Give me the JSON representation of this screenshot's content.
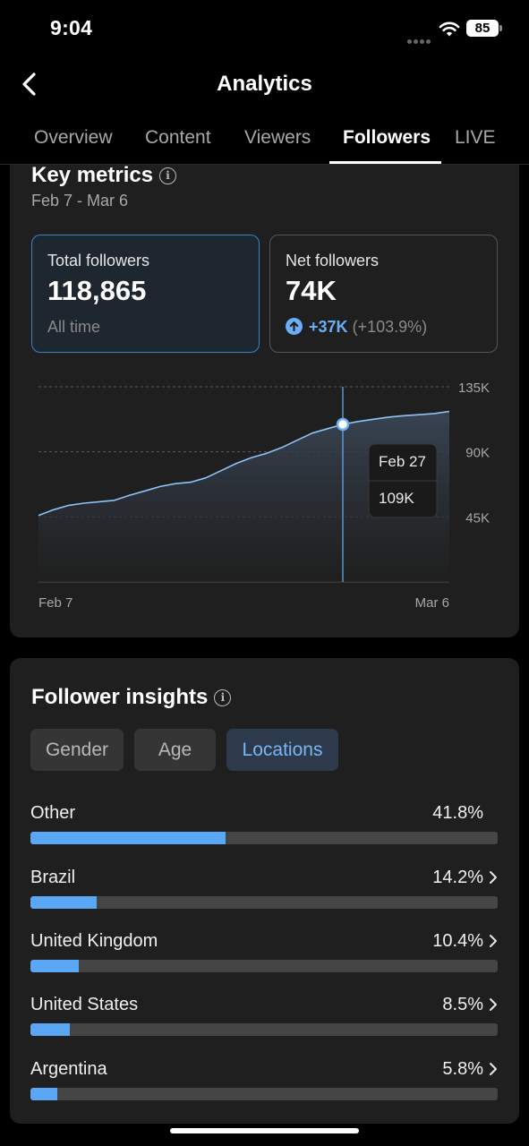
{
  "status_bar": {
    "time": "9:04",
    "battery": "85"
  },
  "header": {
    "title": "Analytics"
  },
  "tabs": [
    {
      "label": "Overview"
    },
    {
      "label": "Content"
    },
    {
      "label": "Viewers"
    },
    {
      "label": "Followers",
      "active": true
    },
    {
      "label": "LIVE"
    }
  ],
  "key_metrics": {
    "title": "Key metrics",
    "date_range": "Feb 7 - Mar 6",
    "total": {
      "label": "Total followers",
      "value": "118,865",
      "sub": "All time"
    },
    "net": {
      "label": "Net followers",
      "value": "74K",
      "change": "+37K",
      "change_pct": "(+103.9%)"
    }
  },
  "chart_data": {
    "type": "area",
    "x_start_label": "Feb 7",
    "x_end_label": "Mar 6",
    "y_ticks": [
      "45K",
      "90K",
      "135K"
    ],
    "ylim": [
      0,
      135000
    ],
    "x": [
      "Feb 7",
      "Feb 8",
      "Feb 9",
      "Feb 10",
      "Feb 11",
      "Feb 12",
      "Feb 13",
      "Feb 14",
      "Feb 15",
      "Feb 16",
      "Feb 17",
      "Feb 18",
      "Feb 19",
      "Feb 20",
      "Feb 21",
      "Feb 22",
      "Feb 23",
      "Feb 24",
      "Feb 25",
      "Feb 26",
      "Feb 27",
      "Feb 28",
      "Mar 1",
      "Mar 2",
      "Mar 3",
      "Mar 4",
      "Mar 5",
      "Mar 6"
    ],
    "values": [
      46000,
      50000,
      53000,
      54500,
      55500,
      56500,
      60000,
      63000,
      66000,
      68000,
      69000,
      72000,
      77000,
      82000,
      86000,
      89000,
      93000,
      98000,
      103000,
      106000,
      109000,
      111000,
      112500,
      114000,
      115000,
      115700,
      116500,
      118000
    ],
    "tooltip": {
      "date": "Feb 27",
      "value": "109K",
      "index": 20
    },
    "colors": {
      "line": "#8ec3f7",
      "cursor": "#6aaef5"
    }
  },
  "insights": {
    "title": "Follower insights",
    "chips": [
      {
        "label": "Gender"
      },
      {
        "label": "Age"
      },
      {
        "label": "Locations",
        "active": true
      }
    ],
    "locations": [
      {
        "name": "Other",
        "pct_label": "41.8%",
        "pct": 41.8,
        "chevron": false
      },
      {
        "name": "Brazil",
        "pct_label": "14.2%",
        "pct": 14.2,
        "chevron": true
      },
      {
        "name": "United Kingdom",
        "pct_label": "10.4%",
        "pct": 10.4,
        "chevron": true
      },
      {
        "name": "United States",
        "pct_label": "8.5%",
        "pct": 8.5,
        "chevron": true
      },
      {
        "name": "Argentina",
        "pct_label": "5.8%",
        "pct": 5.8,
        "chevron": true
      }
    ]
  },
  "colors": {
    "accent": "#5aa8f5",
    "background": "#000000",
    "card": "#1f1f1f"
  },
  "icons": [
    "back-chevron-icon",
    "info-icon",
    "arrow-up-circle-icon",
    "chevron-right-icon",
    "wifi-icon"
  ]
}
